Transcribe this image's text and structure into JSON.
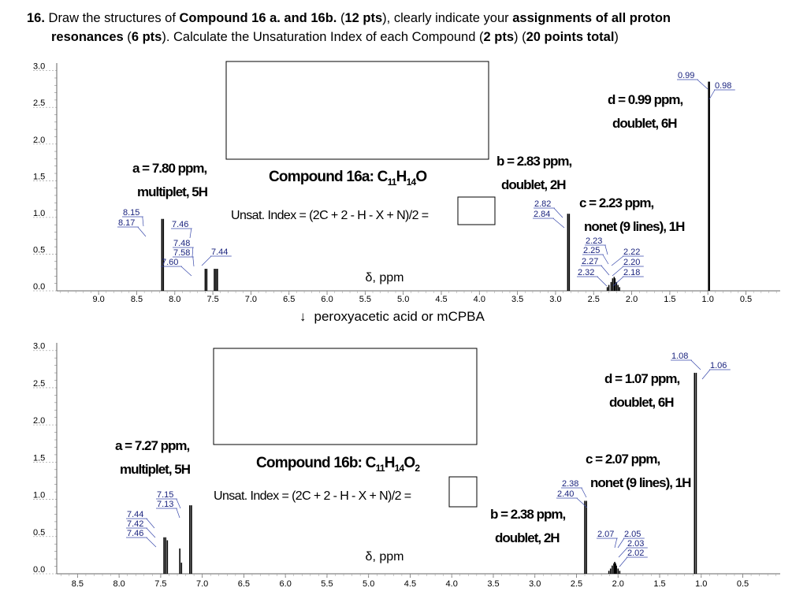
{
  "question": {
    "number": "16.",
    "t1": " Draw the structures of ",
    "b1": "Compound 16 a. and 16b.",
    "t2": " (",
    "b2": "12 pts",
    "t3": "), clearly indicate your ",
    "b3": "assignments of all proton",
    "b4": "resonances",
    "t4": " (",
    "b5": "6 pts",
    "t5": "). Calculate the Unsaturation Index of each Compound (",
    "b6": "2 pts",
    "t6": ") (",
    "b7": "20 points total",
    "t7": ")"
  },
  "reaction": {
    "arrow": "↓",
    "text": "peroxyacetic acid or mCPBA"
  },
  "chart_data": [
    {
      "type": "line",
      "compound": {
        "label": "Compound 16a: C",
        "sub1": "11",
        "mid": "H",
        "sub2": "14",
        "tail": "O",
        "tail_sub": ""
      },
      "unsat_formula": "Unsat. Index = (2C + 2 - H - X + N)/2 =",
      "xlabel": "δ, ppm",
      "ylabel": "",
      "xlim": [
        9.55,
        0.05
      ],
      "ylim": [
        0.0,
        3.05
      ],
      "x_ticks": [
        "9.0",
        "8.5",
        "8.0",
        "7.5",
        "7.0",
        "6.5",
        "6.0",
        "5.5",
        "5.0",
        "4.5",
        "4.0",
        "3.5",
        "3.0",
        "2.5",
        "2.0",
        "1.5",
        "1.0",
        "0.5"
      ],
      "y_ticks": [
        "0.0",
        "0.5",
        "1.0",
        "1.5",
        "2.0",
        "2.5",
        "3.0"
      ],
      "peaks": [
        {
          "ppm": 8.17,
          "height": 0.98
        },
        {
          "ppm": 8.15,
          "height": 0.98
        },
        {
          "ppm": 7.6,
          "height": 0.3
        },
        {
          "ppm": 7.58,
          "height": 0.3
        },
        {
          "ppm": 7.48,
          "height": 0.3
        },
        {
          "ppm": 7.46,
          "height": 0.3
        },
        {
          "ppm": 7.44,
          "height": 0.3
        },
        {
          "ppm": 2.84,
          "height": 1.05
        },
        {
          "ppm": 2.82,
          "height": 1.05
        },
        {
          "ppm": 2.32,
          "height": 0.05
        },
        {
          "ppm": 2.3,
          "height": 0.08
        },
        {
          "ppm": 2.27,
          "height": 0.12
        },
        {
          "ppm": 2.25,
          "height": 0.17
        },
        {
          "ppm": 2.23,
          "height": 0.19
        },
        {
          "ppm": 2.22,
          "height": 0.17
        },
        {
          "ppm": 2.2,
          "height": 0.12
        },
        {
          "ppm": 2.18,
          "height": 0.08
        },
        {
          "ppm": 2.16,
          "height": 0.05
        },
        {
          "ppm": 0.99,
          "height": 2.85
        },
        {
          "ppm": 0.98,
          "height": 2.85
        }
      ],
      "shift_labels": [
        "8.15",
        "8.17",
        "7.46",
        "7.48",
        "7.58",
        "7.60",
        "7.44",
        "2.82",
        "2.84",
        "2.23",
        "2.25",
        "2.27",
        "2.32",
        "2.22",
        "2.20",
        "2.18",
        "0.99",
        "0.98"
      ],
      "assignments": [
        {
          "line1": "a = 7.80 ppm,",
          "line2": "multiplet, 5H"
        },
        {
          "line1": "b = 2.83 ppm,",
          "line2": "doublet, 2H"
        },
        {
          "line1": "c = 2.23 ppm,",
          "line2": "nonet (9 lines), 1H"
        },
        {
          "line1": "d = 0.99 ppm,",
          "line2": "doublet, 6H"
        }
      ]
    },
    {
      "type": "line",
      "compound": {
        "label": "Compound 16b: C",
        "sub1": "11",
        "mid": "H",
        "sub2": "14",
        "tail": "O",
        "tail_sub": "2"
      },
      "unsat_formula": "Unsat. Index = (2C + 2 - H - X + N)/2 =",
      "xlabel": "δ, ppm",
      "ylabel": "",
      "xlim": [
        8.75,
        0.05
      ],
      "ylim": [
        0.0,
        3.05
      ],
      "x_ticks": [
        "8.5",
        "8.0",
        "7.5",
        "7.0",
        "6.5",
        "6.0",
        "5.5",
        "5.0",
        "4.5",
        "4.0",
        "3.5",
        "3.0",
        "2.5",
        "2.0",
        "1.5",
        "1.0",
        "0.5"
      ],
      "y_ticks": [
        "0.0",
        "0.5",
        "1.0",
        "1.5",
        "2.0",
        "2.5",
        "3.0"
      ],
      "peaks": [
        {
          "ppm": 7.46,
          "height": 0.49
        },
        {
          "ppm": 7.44,
          "height": 0.49
        },
        {
          "ppm": 7.42,
          "height": 0.45
        },
        {
          "ppm": 7.27,
          "height": 0.34
        },
        {
          "ppm": 7.25,
          "height": 0.15
        },
        {
          "ppm": 7.15,
          "height": 0.92
        },
        {
          "ppm": 7.13,
          "height": 0.92
        },
        {
          "ppm": 2.4,
          "height": 0.98
        },
        {
          "ppm": 2.38,
          "height": 0.98
        },
        {
          "ppm": 2.11,
          "height": 0.04
        },
        {
          "ppm": 2.09,
          "height": 0.07
        },
        {
          "ppm": 2.07,
          "height": 0.11
        },
        {
          "ppm": 2.05,
          "height": 0.14
        },
        {
          "ppm": 2.04,
          "height": 0.16
        },
        {
          "ppm": 2.03,
          "height": 0.14
        },
        {
          "ppm": 2.02,
          "height": 0.11
        },
        {
          "ppm": 2.0,
          "height": 0.07
        },
        {
          "ppm": 1.98,
          "height": 0.04
        },
        {
          "ppm": 1.08,
          "height": 2.7
        },
        {
          "ppm": 1.06,
          "height": 2.7
        }
      ],
      "shift_labels": [
        "7.15",
        "7.13",
        "7.44",
        "7.42",
        "7.46",
        "2.38",
        "2.40",
        "2.07",
        "2.05",
        "2.03",
        "2.02",
        "1.08",
        "1.06"
      ],
      "assignments": [
        {
          "line1": "a = 7.27 ppm,",
          "line2": "multiplet, 5H"
        },
        {
          "line1": "b = 2.38 ppm,",
          "line2": "doublet, 2H"
        },
        {
          "line1": "c = 2.07 ppm,",
          "line2": "nonet (9 lines), 1H"
        },
        {
          "line1": "d = 1.07 ppm,",
          "line2": "doublet, 6H"
        }
      ]
    }
  ]
}
